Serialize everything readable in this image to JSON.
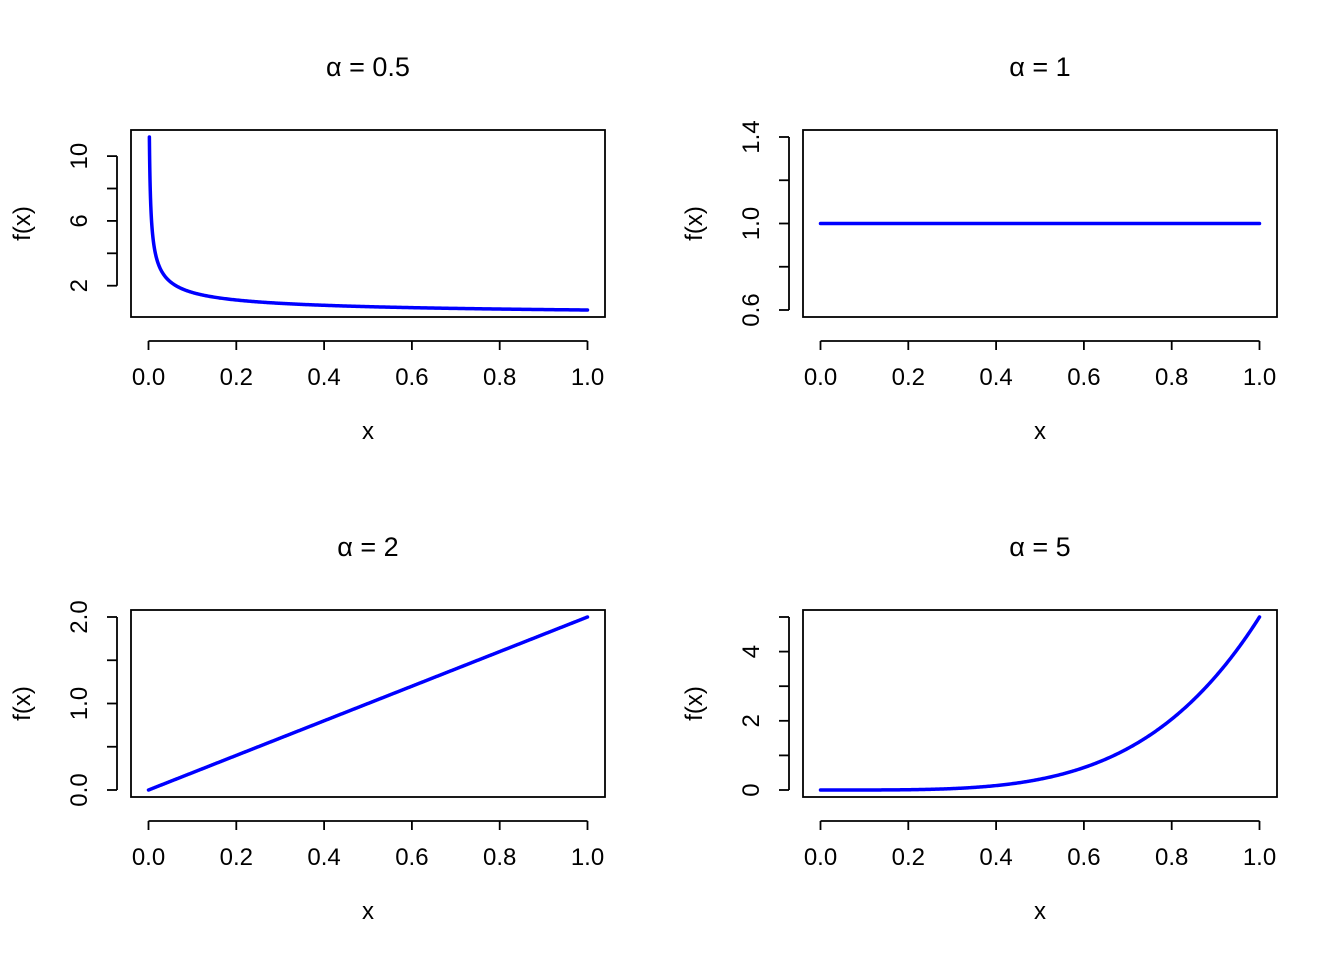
{
  "figure": {
    "line_color": "#0000ff",
    "panels_layout": "2x2 grid"
  },
  "chart_data": [
    {
      "type": "line",
      "title": "α = 0.5",
      "title_symbol": "α",
      "title_value": "0.5",
      "xlabel": "x",
      "ylabel": "f(x)",
      "alpha": 0.5,
      "xlim": [
        0,
        1
      ],
      "ylim": [
        0.5,
        11.18
      ],
      "x_ticks": [
        0.0,
        0.2,
        0.4,
        0.6,
        0.8,
        1.0
      ],
      "x_tick_labels": [
        "0.0",
        "0.2",
        "0.4",
        "0.6",
        "0.8",
        "1.0"
      ],
      "y_ticks": [
        2,
        4,
        6,
        8,
        10
      ],
      "y_tick_labels": [
        "2",
        "",
        "6",
        "",
        "10"
      ],
      "series": [
        {
          "x": [
            0.002,
            0.005,
            0.01,
            0.02,
            0.03,
            0.05,
            0.07,
            0.1,
            0.15,
            0.2,
            0.3,
            0.4,
            0.5,
            0.6,
            0.7,
            0.8,
            0.9,
            1.0
          ],
          "y": [
            11.18,
            7.07,
            5.0,
            3.54,
            2.89,
            2.24,
            1.89,
            1.58,
            1.29,
            1.12,
            0.91,
            0.79,
            0.71,
            0.65,
            0.6,
            0.56,
            0.53,
            0.5
          ]
        }
      ]
    },
    {
      "type": "line",
      "title": "α = 1",
      "title_symbol": "α",
      "title_value": "1",
      "xlabel": "x",
      "ylabel": "f(x)",
      "alpha": 1,
      "xlim": [
        0,
        1
      ],
      "ylim": [
        0.6,
        1.4
      ],
      "x_ticks": [
        0.0,
        0.2,
        0.4,
        0.6,
        0.8,
        1.0
      ],
      "x_tick_labels": [
        "0.0",
        "0.2",
        "0.4",
        "0.6",
        "0.8",
        "1.0"
      ],
      "y_ticks": [
        0.6,
        0.8,
        1.0,
        1.2,
        1.4
      ],
      "y_tick_labels": [
        "0.6",
        "",
        "1.0",
        "",
        "1.4"
      ],
      "series": [
        {
          "x": [
            0.0,
            0.2,
            0.4,
            0.6,
            0.8,
            1.0
          ],
          "y": [
            1.0,
            1.0,
            1.0,
            1.0,
            1.0,
            1.0
          ]
        }
      ]
    },
    {
      "type": "line",
      "title": "α = 2",
      "title_symbol": "α",
      "title_value": "2",
      "xlabel": "x",
      "ylabel": "f(x)",
      "alpha": 2,
      "xlim": [
        0,
        1
      ],
      "ylim": [
        0,
        2
      ],
      "x_ticks": [
        0.0,
        0.2,
        0.4,
        0.6,
        0.8,
        1.0
      ],
      "x_tick_labels": [
        "0.0",
        "0.2",
        "0.4",
        "0.6",
        "0.8",
        "1.0"
      ],
      "y_ticks": [
        0.0,
        0.5,
        1.0,
        1.5,
        2.0
      ],
      "y_tick_labels": [
        "0.0",
        "",
        "1.0",
        "",
        "2.0"
      ],
      "series": [
        {
          "x": [
            0.0,
            0.2,
            0.4,
            0.6,
            0.8,
            1.0
          ],
          "y": [
            0.0,
            0.4,
            0.8,
            1.2,
            1.6,
            2.0
          ]
        }
      ]
    },
    {
      "type": "line",
      "title": "α = 5",
      "title_symbol": "α",
      "title_value": "5",
      "xlabel": "x",
      "ylabel": "f(x)",
      "alpha": 5,
      "xlim": [
        0,
        1
      ],
      "ylim": [
        0,
        5
      ],
      "x_ticks": [
        0.0,
        0.2,
        0.4,
        0.6,
        0.8,
        1.0
      ],
      "x_tick_labels": [
        "0.0",
        "0.2",
        "0.4",
        "0.6",
        "0.8",
        "1.0"
      ],
      "y_ticks": [
        0,
        1,
        2,
        3,
        4,
        5
      ],
      "y_tick_labels": [
        "0",
        "",
        "2",
        "",
        "4",
        ""
      ],
      "series": [
        {
          "x": [
            0.0,
            0.1,
            0.2,
            0.3,
            0.4,
            0.5,
            0.6,
            0.7,
            0.8,
            0.9,
            1.0
          ],
          "y": [
            0.0,
            0.0005,
            0.008,
            0.0405,
            0.128,
            0.3125,
            0.648,
            1.2005,
            2.048,
            3.2805,
            5.0
          ]
        }
      ]
    }
  ]
}
